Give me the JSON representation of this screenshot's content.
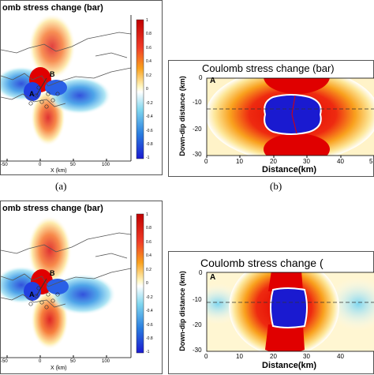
{
  "panels": [
    {
      "id": "a",
      "title": "omb stress change (bar)",
      "sublabel": "(a)",
      "xlabel": "X (km)",
      "xticks": [
        "-50",
        "0",
        "50",
        "100"
      ],
      "colorbar_ticks": [
        "1",
        "0.8",
        "0.6",
        "0.4",
        "0.2",
        "0",
        "-0.2",
        "-0.4",
        "-0.6",
        "-0.8",
        "-1"
      ],
      "markers": [
        "A",
        "B"
      ]
    },
    {
      "id": "b",
      "title": "Coulomb stress change (bar)",
      "sublabel": "(b)",
      "ylabel": "Down-dip distance (km)",
      "xlabel": "Distance(km)",
      "xticks": [
        "0",
        "10",
        "20",
        "30",
        "40",
        "5"
      ],
      "yticks": [
        "0",
        "-10",
        "-20",
        "-30"
      ],
      "marker": "A"
    },
    {
      "id": "c",
      "title": "omb stress change (bar)",
      "xlabel": "X (km)",
      "xticks": [
        "-50",
        "0",
        "50",
        "100"
      ],
      "colorbar_ticks": [
        "1",
        "0.8",
        "0.6",
        "0.4",
        "0.2",
        "0",
        "-0.2",
        "-0.4",
        "-0.6",
        "-0.8",
        "-1"
      ],
      "markers": [
        "A",
        "B"
      ]
    },
    {
      "id": "d",
      "title": "Coulomb stress change (",
      "ylabel": "Down-dip distance (km)",
      "xlabel": "Distance(km)",
      "xticks": [
        "0",
        "10",
        "20",
        "30",
        "40"
      ],
      "yticks": [
        "0",
        "-10",
        "-20",
        "-30"
      ],
      "marker": "A"
    }
  ]
}
